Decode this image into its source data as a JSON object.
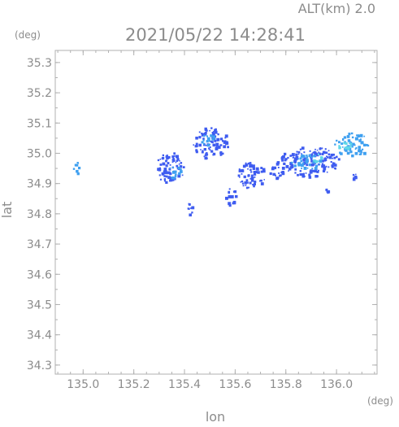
{
  "header": {
    "altitude_label": "ALT(km)  2.0",
    "timestamp": "2021/05/22 14:28:41"
  },
  "axes": {
    "x_label": "lon",
    "y_label": "lat",
    "x_unit": "(deg)",
    "y_unit": "(deg)"
  },
  "chart_data": {
    "type": "heatmap",
    "title": "2021/05/22 14:28:41",
    "subtitle": "ALT(km)  2.0",
    "xlabel": "lon",
    "ylabel": "lat",
    "xlim": [
      134.89,
      136.16
    ],
    "ylim": [
      34.27,
      35.34
    ],
    "xticks": [
      "135.0",
      "135.2",
      "135.4",
      "135.6",
      "135.8",
      "136.0"
    ],
    "xtick_values": [
      135.0,
      135.2,
      135.4,
      135.6,
      135.8,
      136.0
    ],
    "yticks": [
      "35.3",
      "35.2",
      "35.1",
      "35.0",
      "34.9",
      "34.8",
      "34.7",
      "34.6",
      "34.5",
      "34.4",
      "34.3"
    ],
    "ytick_values": [
      35.3,
      35.2,
      35.1,
      35.0,
      34.9,
      34.8,
      34.7,
      34.6,
      34.5,
      34.4,
      34.3
    ],
    "colors": {
      "low": "#3f5cf0",
      "mid": "#3fa0f0",
      "high": "#60d8e8"
    },
    "echo_regions": [
      {
        "lon": 134.97,
        "lat": 34.955,
        "rlon": 0.012,
        "rlat": 0.022,
        "level": "mid"
      },
      {
        "lon": 135.34,
        "lat": 34.955,
        "rlon": 0.06,
        "rlat": 0.05,
        "level": "low"
      },
      {
        "lon": 135.36,
        "lat": 34.94,
        "rlon": 0.03,
        "rlat": 0.02,
        "level": "mid"
      },
      {
        "lon": 135.5,
        "lat": 35.035,
        "rlon": 0.07,
        "rlat": 0.055,
        "level": "low"
      },
      {
        "lon": 135.49,
        "lat": 35.05,
        "rlon": 0.03,
        "rlat": 0.02,
        "level": "mid"
      },
      {
        "lon": 135.58,
        "lat": 34.86,
        "rlon": 0.02,
        "rlat": 0.03,
        "level": "low"
      },
      {
        "lon": 135.66,
        "lat": 34.93,
        "rlon": 0.06,
        "rlat": 0.045,
        "level": "low"
      },
      {
        "lon": 135.76,
        "lat": 34.945,
        "rlon": 0.03,
        "rlat": 0.03,
        "level": "low"
      },
      {
        "lon": 135.89,
        "lat": 34.975,
        "rlon": 0.12,
        "rlat": 0.05,
        "level": "low"
      },
      {
        "lon": 135.88,
        "lat": 34.975,
        "rlon": 0.06,
        "rlat": 0.025,
        "level": "mid"
      },
      {
        "lon": 135.92,
        "lat": 34.99,
        "rlon": 0.02,
        "rlat": 0.015,
        "level": "high"
      },
      {
        "lon": 136.06,
        "lat": 35.03,
        "rlon": 0.07,
        "rlat": 0.04,
        "level": "mid"
      },
      {
        "lon": 136.03,
        "lat": 35.03,
        "rlon": 0.025,
        "rlat": 0.02,
        "level": "high"
      },
      {
        "lon": 136.07,
        "lat": 34.925,
        "rlon": 0.01,
        "rlat": 0.012,
        "level": "low"
      },
      {
        "lon": 135.42,
        "lat": 34.82,
        "rlon": 0.01,
        "rlat": 0.02,
        "level": "low"
      },
      {
        "lon": 135.96,
        "lat": 34.875,
        "rlon": 0.01,
        "rlat": 0.01,
        "level": "low"
      }
    ]
  }
}
